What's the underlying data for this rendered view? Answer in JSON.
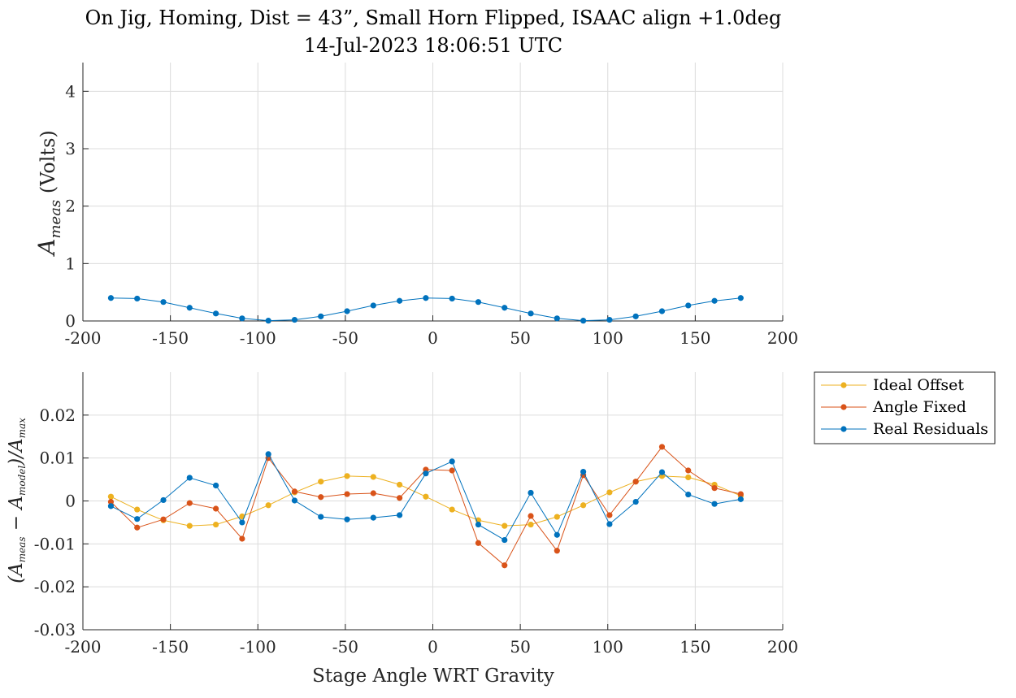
{
  "chart_data": [
    {
      "type": "line",
      "title": "On Jig, Homing, Dist = 43”, Small Horn Flipped, ISAAC align +1.0deg",
      "subtitle": "14-Jul-2023 18:06:51 UTC",
      "xlabel": "",
      "ylabel_main": "A",
      "ylabel_sub": "meas",
      "ylabel_suffix": " (Volts)",
      "xlim": [
        -200,
        200
      ],
      "ylim": [
        0,
        4.5
      ],
      "xticks": [
        -200,
        -150,
        -100,
        -50,
        0,
        50,
        100,
        150,
        200
      ],
      "yticks": [
        0,
        1,
        2,
        3,
        4
      ],
      "grid": true,
      "x": [
        -184,
        -169,
        -154,
        -139,
        -124,
        -109,
        -94,
        -79,
        -64,
        -49,
        -34,
        -19,
        -4,
        11,
        26,
        41,
        56,
        71,
        86,
        101,
        116,
        131,
        146,
        161,
        176
      ],
      "series": [
        {
          "color": "#0072BD",
          "values": [
            0.4,
            0.39,
            0.33,
            0.23,
            0.13,
            0.045,
            0.005,
            0.02,
            0.08,
            0.17,
            0.27,
            0.35,
            0.4,
            0.39,
            0.33,
            0.23,
            0.13,
            0.045,
            0.005,
            0.02,
            0.08,
            0.17,
            0.27,
            0.35,
            0.4
          ]
        }
      ]
    },
    {
      "type": "line",
      "xlabel": "Stage Angle WRT Gravity",
      "ylabel_parts": [
        {
          "t": "(A",
          "sub": false
        },
        {
          "t": "meas",
          "sub": true
        },
        {
          "t": " − A",
          "sub": false
        },
        {
          "t": "model",
          "sub": true
        },
        {
          "t": ")/A",
          "sub": false
        },
        {
          "t": "max",
          "sub": true
        }
      ],
      "xlim": [
        -200,
        200
      ],
      "ylim": [
        -0.03,
        0.03
      ],
      "xticks": [
        -200,
        -150,
        -100,
        -50,
        0,
        50,
        100,
        150,
        200
      ],
      "yticks": [
        -0.03,
        -0.02,
        -0.01,
        0,
        0.01,
        0.02
      ],
      "ytick_labels": [
        "-0.03",
        "-0.02",
        "-0.01",
        "0",
        "0.01",
        "0.02"
      ],
      "grid": true,
      "legend_location": "outside-top-right",
      "x": [
        -184,
        -169,
        -154,
        -139,
        -124,
        -109,
        -94,
        -79,
        -64,
        -49,
        -34,
        -19,
        -4,
        11,
        26,
        41,
        56,
        71,
        86,
        101,
        116,
        131,
        146,
        161,
        176
      ],
      "series": [
        {
          "name": "Ideal Offset",
          "color": "#EDB120",
          "values": [
            0.001,
            -0.002,
            -0.0045,
            -0.0058,
            -0.0055,
            -0.0036,
            -0.001,
            0.002,
            0.0045,
            0.0058,
            0.0056,
            0.0038,
            0.001,
            -0.002,
            -0.0045,
            -0.0058,
            -0.0055,
            -0.0037,
            -0.001,
            0.002,
            0.0045,
            0.0058,
            0.0055,
            0.0038,
            0.0012
          ]
        },
        {
          "name": "Angle Fixed",
          "color": "#D95319",
          "values": [
            -0.0002,
            -0.0062,
            -0.0043,
            -0.0005,
            -0.0018,
            -0.0088,
            0.01,
            0.0022,
            0.0009,
            0.0016,
            0.0018,
            0.0007,
            0.0073,
            0.0071,
            -0.0098,
            -0.015,
            -0.0035,
            -0.0116,
            0.006,
            -0.0033,
            0.0045,
            0.0126,
            0.0071,
            0.003,
            0.0016
          ]
        },
        {
          "name": "Real Residuals",
          "color": "#0072BD",
          "values": [
            -0.0012,
            -0.0042,
            0.0002,
            0.0054,
            0.0036,
            -0.005,
            0.0109,
            0.0001,
            -0.0037,
            -0.0043,
            -0.0039,
            -0.0033,
            0.0064,
            0.0092,
            -0.0055,
            -0.0091,
            0.0019,
            -0.0079,
            0.0068,
            -0.0054,
            -0.0002,
            0.0067,
            0.0015,
            -0.0007,
            0.0004
          ]
        }
      ]
    }
  ]
}
